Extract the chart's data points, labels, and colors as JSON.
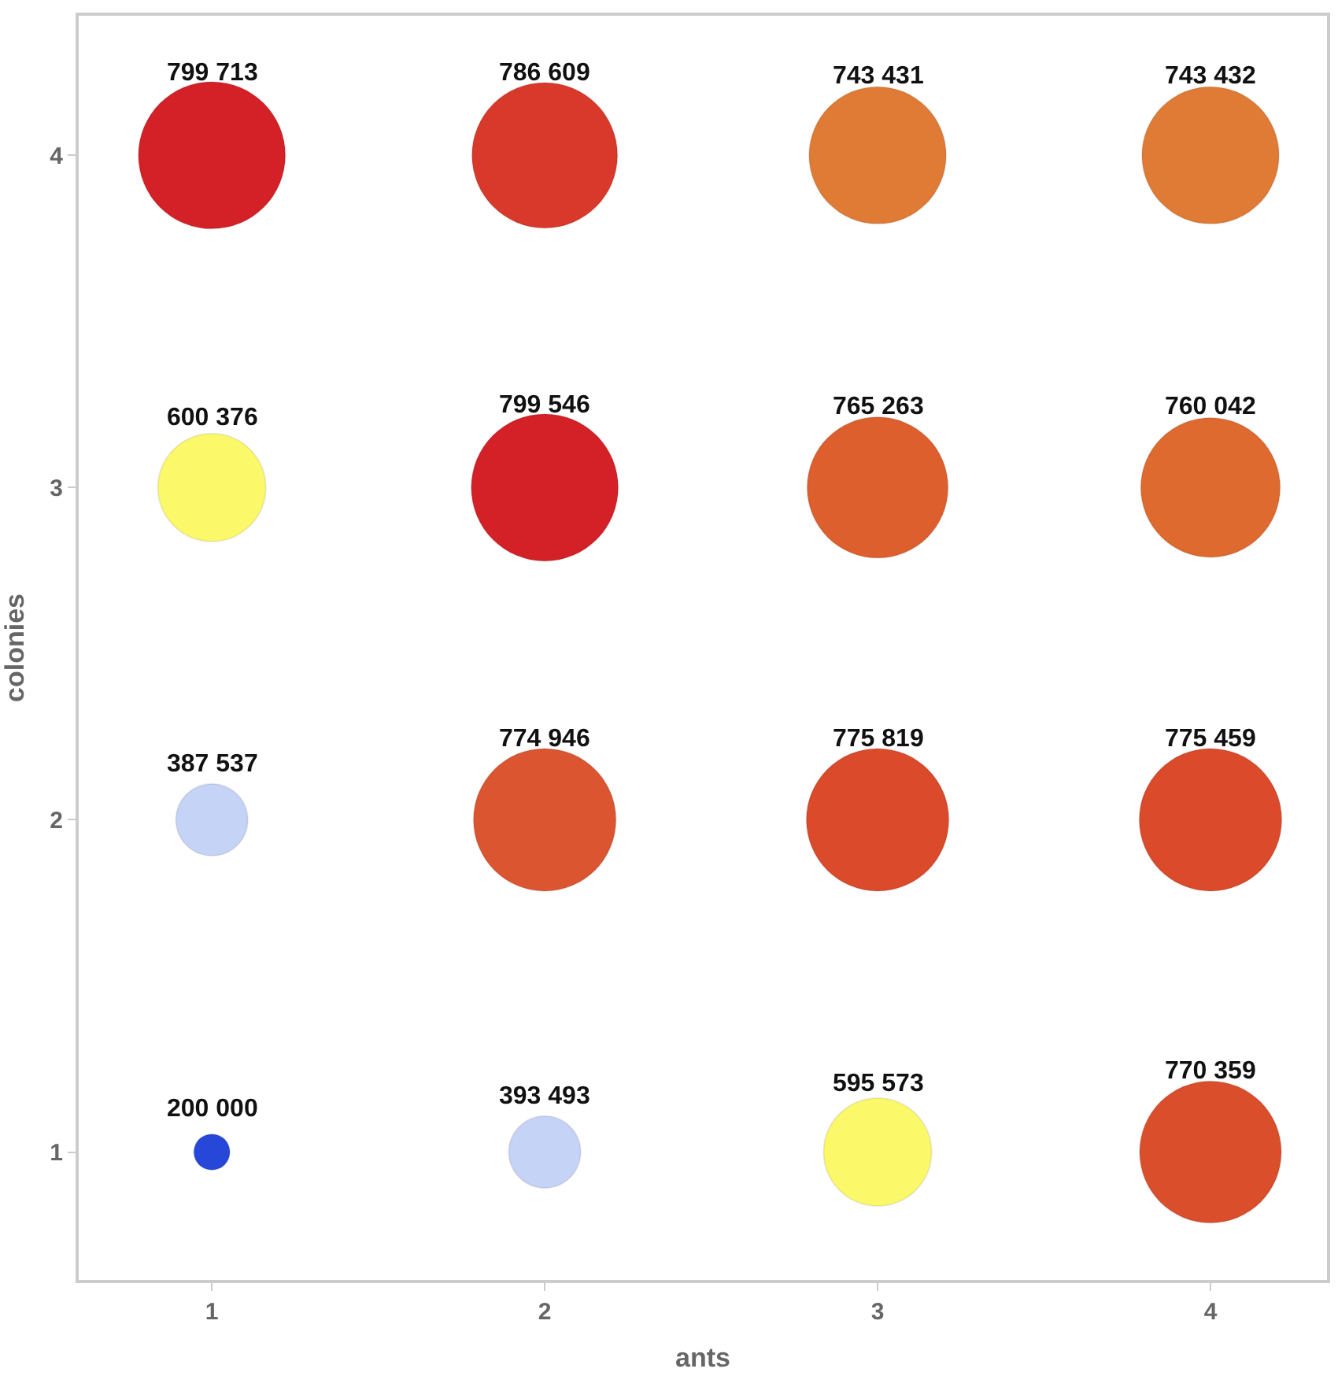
{
  "chart_data": {
    "type": "bubble",
    "xlabel": "ants",
    "ylabel": "colonies",
    "x": [
      1,
      2,
      3,
      4,
      1,
      2,
      3,
      4,
      1,
      2,
      3,
      4,
      1,
      2,
      3,
      4
    ],
    "values": [
      4,
      4,
      4,
      4,
      3,
      3,
      3,
      3,
      2,
      2,
      2,
      2,
      1,
      1,
      1,
      1
    ],
    "sizes": [
      1.0,
      0.98,
      0.87,
      0.87,
      0.54,
      1.0,
      0.92,
      0.9,
      0.24,
      0.94,
      0.94,
      0.94,
      0.06,
      0.24,
      0.54,
      0.93
    ],
    "colors": [
      "#d42027",
      "#d8392a",
      "#e07b35",
      "#e07b35",
      "#fbf86a",
      "#d42027",
      "#dd5f2d",
      "#de6a30",
      "#c5d3f6",
      "#db5530",
      "#da4a2b",
      "#da4a2b",
      "#2647d8",
      "#c5d3f6",
      "#fbf86a",
      "#da4e2b"
    ],
    "annotations": [
      {
        "text": "799 713",
        "x": 1,
        "y": 4
      },
      {
        "text": "786 609",
        "x": 2,
        "y": 4
      },
      {
        "text": "743 431",
        "x": 3,
        "y": 4
      },
      {
        "text": "743 432",
        "x": 4,
        "y": 4
      },
      {
        "text": "600 376",
        "x": 1,
        "y": 3
      },
      {
        "text": "799 546",
        "x": 2,
        "y": 3
      },
      {
        "text": "765 263",
        "x": 3,
        "y": 3
      },
      {
        "text": "760 042",
        "x": 4,
        "y": 3
      },
      {
        "text": "387 537",
        "x": 1,
        "y": 2
      },
      {
        "text": "774 946",
        "x": 2,
        "y": 2
      },
      {
        "text": "775 819",
        "x": 3,
        "y": 2
      },
      {
        "text": "775 459",
        "x": 4,
        "y": 2
      },
      {
        "text": "200 000",
        "x": 1,
        "y": 1
      },
      {
        "text": "393 493",
        "x": 2,
        "y": 1
      },
      {
        "text": "595 573",
        "x": 3,
        "y": 1
      },
      {
        "text": "770 359",
        "x": 4,
        "y": 1
      }
    ],
    "xlim": [
      0.6,
      4.35
    ],
    "ylim": [
      0.615,
      4.42
    ],
    "xticks": [
      1,
      2,
      3,
      4
    ],
    "yticks": [
      1,
      2,
      3,
      4
    ]
  }
}
